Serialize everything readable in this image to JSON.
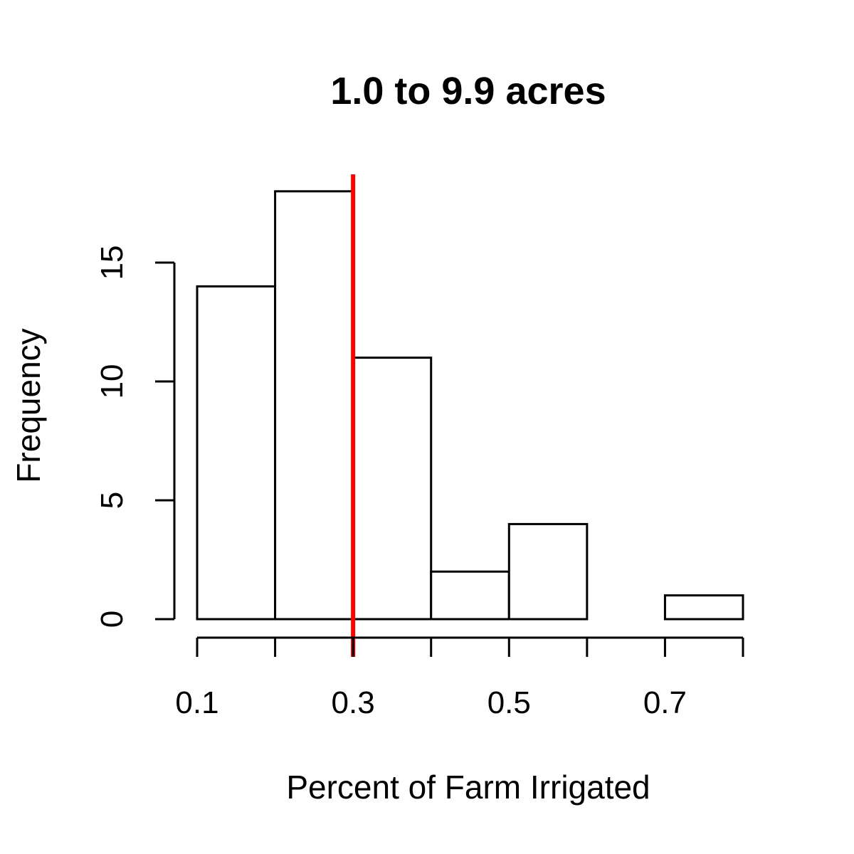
{
  "chart_data": {
    "type": "bar",
    "title": "1.0 to 9.9 acres",
    "xlabel": "Percent of Farm Irrigated",
    "ylabel": "Frequency",
    "bins": [
      {
        "start": 0.1,
        "end": 0.2,
        "count": 14
      },
      {
        "start": 0.2,
        "end": 0.3,
        "count": 18
      },
      {
        "start": 0.3,
        "end": 0.4,
        "count": 11
      },
      {
        "start": 0.4,
        "end": 0.5,
        "count": 2
      },
      {
        "start": 0.5,
        "end": 0.6,
        "count": 4
      },
      {
        "start": 0.6,
        "end": 0.7,
        "count": 0
      },
      {
        "start": 0.7,
        "end": 0.8,
        "count": 1
      }
    ],
    "xlim": [
      0.1,
      0.8
    ],
    "ylim": [
      0,
      18
    ],
    "x_ticks": [
      0.1,
      0.2,
      0.3,
      0.4,
      0.5,
      0.6,
      0.7,
      0.8
    ],
    "x_tick_labels": [
      {
        "value": 0.1,
        "label": "0.1"
      },
      {
        "value": 0.3,
        "label": "0.3"
      },
      {
        "value": 0.5,
        "label": "0.5"
      },
      {
        "value": 0.7,
        "label": "0.7"
      }
    ],
    "y_ticks": [
      {
        "value": 0,
        "label": "0"
      },
      {
        "value": 5,
        "label": "5"
      },
      {
        "value": 10,
        "label": "10"
      },
      {
        "value": 15,
        "label": "15"
      }
    ],
    "reference_line": {
      "x": 0.3,
      "color": "#ff0000"
    },
    "bar_fill": "#ffffff",
    "bar_stroke": "#000000",
    "grid": false,
    "legend": "none"
  }
}
